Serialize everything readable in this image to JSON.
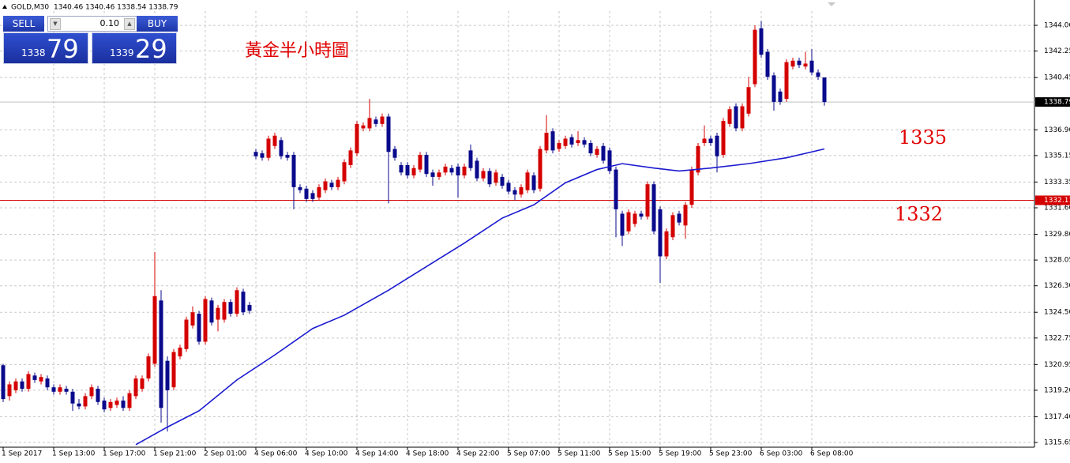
{
  "header": {
    "symbol": "GOLD,M30",
    "quote": "1340.46 1340.46 1338.54 1338.79"
  },
  "trade_panel": {
    "sell": "SELL",
    "buy": "BUY",
    "lot": "0.10",
    "sell_price_big": "1338",
    "sell_price_pips": "79",
    "buy_price_big": "1339",
    "buy_price_pips": "29"
  },
  "chart_data": {
    "type": "candlestick",
    "annotations": [
      "黃金半小時圖",
      "1335",
      "1332"
    ],
    "categories": [
      "1 Sep 2017",
      null,
      null,
      null,
      null,
      null,
      null,
      null,
      "1 Sep 13:00",
      null,
      null,
      null,
      null,
      null,
      null,
      null,
      "1 Sep 17:00",
      null,
      null,
      null,
      null,
      null,
      null,
      null,
      "1 Sep 21:00",
      null,
      null,
      null,
      null,
      null,
      null,
      null,
      "2 Sep 01:00",
      null,
      null,
      null,
      null,
      null,
      null,
      null,
      "4 Sep 06:00",
      null,
      null,
      null,
      null,
      null,
      null,
      null,
      "4 Sep 10:00",
      null,
      null,
      null,
      null,
      null,
      null,
      null,
      "4 Sep 14:00",
      null,
      null,
      null,
      null,
      null,
      null,
      null,
      "4 Sep 18:00",
      null,
      null,
      null,
      null,
      null,
      null,
      null,
      "4 Sep 22:00",
      null,
      null,
      null,
      null,
      null,
      null,
      null,
      "5 Sep 07:00",
      null,
      null,
      null,
      null,
      null,
      null,
      null,
      "5 Sep 11:00",
      null,
      null,
      null,
      null,
      null,
      null,
      null,
      "5 Sep 15:00",
      null,
      null,
      null,
      null,
      null,
      null,
      null,
      "5 Sep 19:00",
      null,
      null,
      null,
      null,
      null,
      null,
      null,
      "5 Sep 23:00",
      null,
      null,
      null,
      null,
      null,
      null,
      null,
      "6 Sep 03:00",
      null,
      null,
      null,
      null,
      null,
      null,
      null,
      "6 Sep 08:00",
      null,
      null
    ],
    "open": [
      1320.9,
      1318.8,
      1319.2,
      1319.8,
      1319.3,
      1320.2,
      1319.8,
      1320.0,
      1319.4,
      1319.1,
      1319.3,
      1319.1,
      1318.3,
      1318.1,
      1318.8,
      1319.3,
      1318.5,
      1318.0,
      1318.2,
      1318.5,
      1318.0,
      1318.8,
      1319.3,
      1320.0,
      1321.0,
      1325.3,
      1321.2,
      1319.4,
      1321.5,
      1322.0,
      1323.6,
      1324.4,
      1322.5,
      1325.3,
      1324.0,
      1324.0,
      1325.2,
      1324.4,
      1325.9,
      1325.0,
      1335.4,
      1335.3,
      1335.0,
      1335.8,
      1336.2,
      1335.2,
      1335.2,
      1333.0,
      1332.9,
      1332.6,
      1332.3,
      1332.8,
      1333.3,
      1333.0,
      1333.4,
      1334.5,
      1335.3,
      1337.0,
      1337.0,
      1337.6,
      1337.3,
      1337.8,
      1335.6,
      1334.5,
      1334.5,
      1333.8,
      1334.2,
      1335.2,
      1334.0,
      1333.7,
      1334.0,
      1334.3,
      1334.4,
      1333.8,
      1335.5,
      1334.8,
      1333.6,
      1334.1,
      1333.3,
      1333.7,
      1333.3,
      1332.8,
      1332.5,
      1332.8,
      1333.8,
      1332.9,
      1335.5,
      1336.8,
      1335.6,
      1335.8,
      1336.4,
      1336.0,
      1336.2,
      1336.0,
      1335.2,
      1335.8,
      1335.5,
      1334.2,
      1331.2,
      1330.0,
      1330.5,
      1331.2,
      1331.0,
      1333.2,
      1331.5,
      1328.3,
      1329.6,
      1331.2,
      1330.4,
      1331.8,
      1334.0,
      1336.0,
      1336.3,
      1336.5,
      1335.2,
      1337.3,
      1338.5,
      1337.0,
      1338.0,
      1340.0,
      1343.8,
      1342.2,
      1340.6,
      1339.5,
      1339.0,
      1341.2,
      1341.6,
      1341.2,
      1341.6,
      1340.8,
      1340.46
    ],
    "high": [
      1321.0,
      1319.8,
      1320.0,
      1320.0,
      1320.5,
      1320.4,
      1320.3,
      1320.2,
      1319.6,
      1319.6,
      1319.5,
      1319.3,
      1318.6,
      1319.0,
      1319.6,
      1319.5,
      1318.7,
      1318.6,
      1318.7,
      1318.8,
      1319.2,
      1320.2,
      1320.2,
      1321.7,
      1328.6,
      1326.0,
      1321.5,
      1322.0,
      1322.3,
      1324.2,
      1324.9,
      1324.6,
      1325.6,
      1325.5,
      1325.0,
      1325.4,
      1325.4,
      1326.2,
      1326.1,
      1325.2,
      1335.6,
      1335.5,
      1336.5,
      1336.7,
      1336.4,
      1335.4,
      1335.4,
      1333.2,
      1333.1,
      1332.8,
      1333.2,
      1333.6,
      1333.5,
      1333.7,
      1334.9,
      1335.7,
      1337.5,
      1337.4,
      1339.0,
      1337.8,
      1338.0,
      1338.0,
      1335.8,
      1334.7,
      1334.7,
      1334.5,
      1335.4,
      1335.4,
      1334.2,
      1334.2,
      1334.6,
      1334.5,
      1334.6,
      1334.6,
      1335.9,
      1335.0,
      1334.3,
      1334.3,
      1334.2,
      1333.9,
      1333.5,
      1333.0,
      1333.2,
      1334.2,
      1334.0,
      1335.8,
      1337.9,
      1337.0,
      1336.2,
      1336.5,
      1336.6,
      1336.8,
      1336.4,
      1336.2,
      1335.8,
      1336.0,
      1335.7,
      1334.4,
      1331.4,
      1331.5,
      1331.4,
      1331.4,
      1333.4,
      1333.4,
      1331.7,
      1330.2,
      1331.3,
      1331.4,
      1332.0,
      1334.4,
      1336.0,
      1337.2,
      1336.5,
      1336.7,
      1337.7,
      1338.5,
      1338.7,
      1338.7,
      1340.5,
      1344.0,
      1344.3,
      1342.4,
      1340.8,
      1339.7,
      1341.7,
      1341.8,
      1341.8,
      1342.2,
      1342.4,
      1341.0,
      1340.46
    ],
    "low": [
      1318.4,
      1318.5,
      1319.0,
      1319.1,
      1319.1,
      1319.7,
      1319.6,
      1319.2,
      1318.9,
      1318.9,
      1318.9,
      1317.8,
      1317.9,
      1317.9,
      1318.6,
      1318.2,
      1317.7,
      1317.8,
      1318.0,
      1317.8,
      1317.8,
      1318.6,
      1319.1,
      1319.8,
      1320.8,
      1317.0,
      1316.4,
      1319.2,
      1321.3,
      1321.8,
      1323.4,
      1322.3,
      1322.3,
      1323.6,
      1323.2,
      1323.8,
      1324.2,
      1324.2,
      1324.3,
      1324.4,
      1334.9,
      1334.8,
      1334.8,
      1335.6,
      1334.9,
      1334.8,
      1331.5,
      1332.6,
      1332.0,
      1332.0,
      1332.1,
      1332.6,
      1332.8,
      1332.8,
      1333.2,
      1334.3,
      1335.1,
      1336.8,
      1336.8,
      1337.1,
      1337.1,
      1331.9,
      1334.8,
      1333.8,
      1333.6,
      1333.6,
      1334.0,
      1333.7,
      1333.1,
      1333.5,
      1333.8,
      1333.8,
      1332.3,
      1333.6,
      1334.1,
      1333.4,
      1333.4,
      1333.0,
      1333.1,
      1332.9,
      1332.5,
      1332.1,
      1332.3,
      1332.6,
      1332.6,
      1332.7,
      1335.3,
      1335.3,
      1335.4,
      1335.6,
      1335.7,
      1335.8,
      1335.7,
      1335.1,
      1335.0,
      1334.6,
      1333.9,
      1329.6,
      1329.0,
      1329.8,
      1330.3,
      1330.8,
      1330.8,
      1329.8,
      1326.5,
      1328.1,
      1329.4,
      1330.4,
      1329.5,
      1331.6,
      1333.8,
      1335.8,
      1335.8,
      1334.0,
      1335.0,
      1337.1,
      1336.8,
      1336.8,
      1337.8,
      1339.8,
      1341.8,
      1340.3,
      1338.2,
      1338.6,
      1338.8,
      1341.0,
      1341.1,
      1341.0,
      1340.6,
      1340.3,
      1338.54
    ],
    "close": [
      1318.6,
      1319.6,
      1319.8,
      1319.3,
      1320.3,
      1319.9,
      1320.1,
      1319.4,
      1319.1,
      1319.4,
      1319.1,
      1318.3,
      1318.1,
      1318.8,
      1319.4,
      1318.4,
      1317.9,
      1318.4,
      1318.5,
      1318.0,
      1319.0,
      1320.0,
      1320.0,
      1321.5,
      1325.6,
      1318.0,
      1319.2,
      1321.8,
      1322.1,
      1324.0,
      1324.5,
      1322.5,
      1325.4,
      1323.8,
      1324.8,
      1325.2,
      1324.4,
      1326.0,
      1324.5,
      1324.6,
      1335.1,
      1335.0,
      1336.3,
      1336.5,
      1335.1,
      1335.0,
      1333.0,
      1332.8,
      1332.2,
      1332.2,
      1333.0,
      1333.4,
      1333.0,
      1333.5,
      1334.7,
      1335.5,
      1337.3,
      1337.2,
      1337.7,
      1337.3,
      1337.8,
      1335.4,
      1335.0,
      1334.0,
      1333.8,
      1334.3,
      1335.2,
      1333.9,
      1333.7,
      1334.0,
      1334.4,
      1334.0,
      1333.8,
      1334.4,
      1334.3,
      1333.6,
      1334.1,
      1333.2,
      1334.0,
      1333.1,
      1332.7,
      1332.5,
      1333.0,
      1334.0,
      1332.8,
      1335.6,
      1336.7,
      1335.5,
      1336.0,
      1336.3,
      1335.9,
      1336.2,
      1335.9,
      1335.3,
      1335.6,
      1334.8,
      1334.1,
      1331.5,
      1329.7,
      1331.3,
      1331.2,
      1331.0,
      1333.2,
      1330.0,
      1328.3,
      1330.0,
      1331.1,
      1330.6,
      1331.8,
      1334.2,
      1335.8,
      1336.3,
      1336.0,
      1335.1,
      1337.5,
      1338.3,
      1337.0,
      1338.5,
      1339.8,
      1343.7,
      1342.0,
      1340.5,
      1338.8,
      1338.8,
      1341.5,
      1341.6,
      1341.3,
      1341.4,
      1340.8,
      1340.5,
      1338.79
    ],
    "up_color": "#d40000",
    "down_color": "#0a0a8c",
    "ma": {
      "color": "#1a1ad0",
      "x": [
        21,
        26,
        31,
        37,
        43,
        49,
        54,
        61,
        67,
        73,
        79,
        84,
        89,
        94,
        98,
        103,
        107,
        112,
        118,
        124,
        130
      ],
      "values": [
        1315.5,
        1316.7,
        1317.8,
        1319.9,
        1321.6,
        1323.4,
        1324.3,
        1326.0,
        1327.6,
        1329.2,
        1330.9,
        1331.8,
        1333.3,
        1334.2,
        1334.6,
        1334.3,
        1334.1,
        1334.3,
        1334.6,
        1335.0,
        1335.6
      ]
    },
    "last_price": 1338.79,
    "price_line": {
      "value": 1332.11,
      "color": "#d40000"
    },
    "ylim": [
      1315.33,
      1344.97
    ],
    "yticks": [
      1315.65,
      {
        "value": 1317.4,
        "label": "1317.40"
      },
      {
        "value": 1319.2,
        "label": "1319.20"
      },
      1320.95,
      1322.75,
      {
        "value": 1324.5,
        "label": "1324.50"
      },
      {
        "value": 1326.3,
        "label": "1326.30"
      },
      1328.05,
      {
        "value": 1329.8,
        "label": "1329.80"
      },
      {
        "value": 1331.6,
        "label": "1331.60"
      },
      1333.35,
      1335.15,
      {
        "value": 1336.9,
        "label": "1336.90"
      },
      1340.45,
      1342.25,
      {
        "value": 1344,
        "label": "1344.00"
      }
    ],
    "grid": true
  }
}
